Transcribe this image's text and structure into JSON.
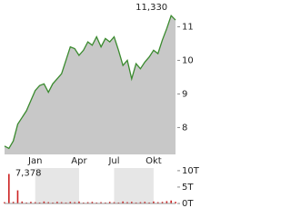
{
  "chart_data": [
    {
      "type": "area",
      "color": "#3a8a2e",
      "fill": "#c8c8c8",
      "categories": [
        null,
        null,
        null,
        null,
        null,
        null,
        null,
        "Jan",
        null,
        null,
        null,
        null,
        null,
        null,
        null,
        null,
        null,
        "Apr",
        null,
        null,
        null,
        null,
        null,
        null,
        null,
        "Jul",
        null,
        null,
        null,
        null,
        null,
        null,
        null,
        null,
        "Okt",
        null,
        null,
        null,
        null,
        null
      ],
      "values": [
        7.45,
        7.378,
        7.6,
        8.1,
        8.3,
        8.5,
        8.8,
        9.1,
        9.25,
        9.3,
        9.05,
        9.3,
        9.45,
        9.6,
        10.0,
        10.4,
        10.35,
        10.15,
        10.3,
        10.55,
        10.45,
        10.7,
        10.4,
        10.65,
        10.55,
        10.7,
        10.3,
        9.85,
        10.0,
        9.45,
        9.9,
        9.75,
        9.95,
        10.1,
        10.3,
        10.2,
        10.6,
        10.95,
        11.33,
        11.2
      ],
      "value_labels": [
        null,
        "7,378",
        null,
        null,
        null,
        null,
        null,
        null,
        null,
        null,
        null,
        null,
        null,
        null,
        null,
        null,
        null,
        null,
        null,
        null,
        null,
        null,
        null,
        null,
        null,
        null,
        null,
        null,
        null,
        null,
        null,
        null,
        null,
        null,
        null,
        null,
        null,
        null,
        "11,330",
        null
      ],
      "ylim": [
        7.2,
        11.58
      ],
      "yticks": [
        8,
        9,
        10,
        11
      ]
    },
    {
      "type": "bar",
      "color": "#cc2222",
      "values": [
        0.4,
        9,
        0.5,
        4,
        0.6,
        0.3,
        0.5,
        0.4,
        0.3,
        0.6,
        0.4,
        0.3,
        0.5,
        0.4,
        0.3,
        0.5,
        0.4,
        0.6,
        0.3,
        0.4,
        0.5,
        0.3,
        0.4,
        0.3,
        0.5,
        0.4,
        0.3,
        0.6,
        0.4,
        0.5,
        0.3,
        0.4,
        0.5,
        0.3,
        0.6,
        0.4,
        0.5,
        0.7,
        0.9,
        0.5
      ],
      "ylim": [
        0,
        10.8
      ],
      "yticks": [
        {
          "value": 0,
          "label": "0T"
        },
        {
          "value": 5,
          "label": "5T"
        },
        {
          "value": 10,
          "label": "10T"
        }
      ]
    }
  ]
}
